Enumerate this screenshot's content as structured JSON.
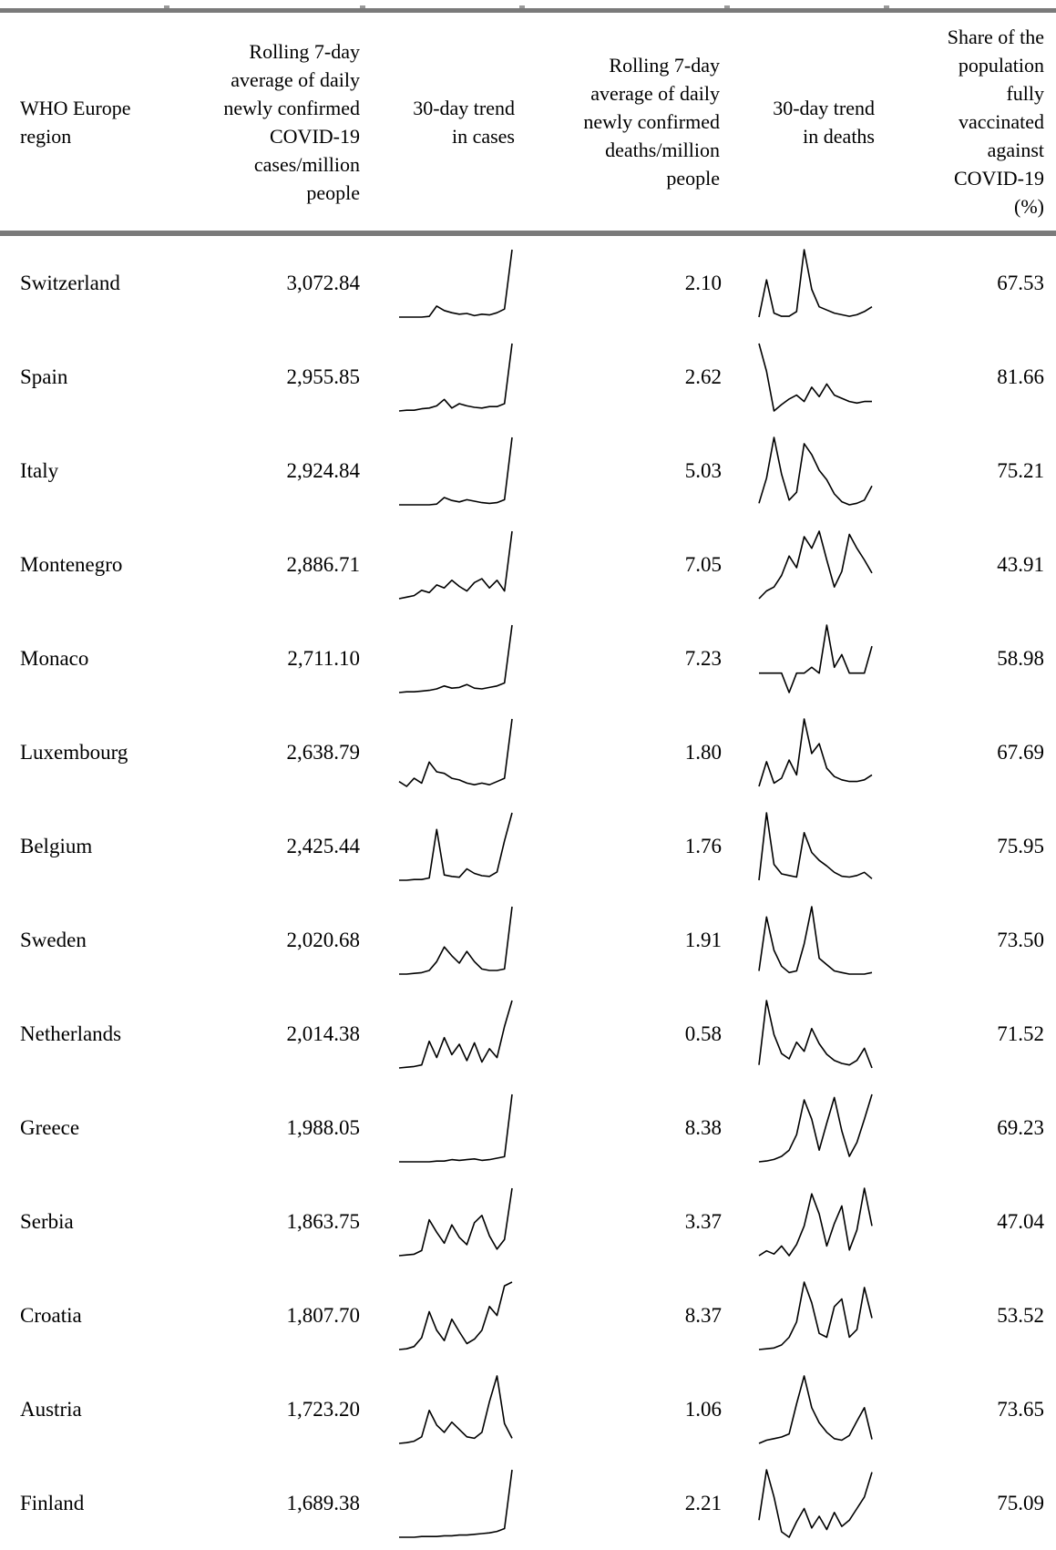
{
  "table": {
    "headers": {
      "region": "WHO Europe\nregion",
      "cases_avg": "Rolling 7-day\naverage of daily\nnewly confirmed\nCOVID-19\ncases/million\npeople",
      "cases_trend": "30-day trend\nin cases",
      "deaths_avg": "Rolling 7-day\naverage of daily\nnewly confirmed\ndeaths/million\npeople",
      "deaths_trend": "30-day trend\nin deaths",
      "vaccinated": "Share of the\npopulation\nfully\nvaccinated\nagainst\nCOVID-19\n(%)"
    },
    "rows": [
      {
        "region": "Switzerland",
        "cases": "3,072.84",
        "deaths": "2.10",
        "vaccinated": "67.53",
        "cases_trend": [
          3,
          3,
          3,
          3,
          4,
          18,
          12,
          9,
          7,
          8,
          5,
          7,
          6,
          9,
          14,
          95
        ],
        "deaths_trend": [
          5,
          52,
          10,
          6,
          6,
          12,
          90,
          40,
          18,
          14,
          10,
          8,
          6,
          8,
          12,
          18
        ]
      },
      {
        "region": "Spain",
        "cases": "2,955.85",
        "deaths": "2.62",
        "vaccinated": "81.66",
        "cases_trend": [
          4,
          5,
          5,
          7,
          8,
          11,
          20,
          8,
          14,
          11,
          9,
          8,
          10,
          10,
          14,
          97
        ],
        "deaths_trend": [
          95,
          60,
          10,
          18,
          25,
          30,
          22,
          40,
          28,
          44,
          30,
          26,
          22,
          20,
          22,
          22
        ]
      },
      {
        "region": "Italy",
        "cases": "2,924.84",
        "deaths": "5.03",
        "vaccinated": "75.21",
        "cases_trend": [
          3,
          3,
          3,
          3,
          3,
          4,
          13,
          9,
          7,
          10,
          8,
          6,
          5,
          6,
          10,
          95
        ],
        "deaths_trend": [
          8,
          40,
          92,
          45,
          12,
          22,
          84,
          70,
          50,
          38,
          20,
          10,
          6,
          8,
          12,
          30
        ]
      },
      {
        "region": "Montenegro",
        "cases": "2,886.71",
        "deaths": "7.05",
        "vaccinated": "43.91",
        "cases_trend": [
          4,
          6,
          8,
          15,
          12,
          22,
          18,
          28,
          20,
          14,
          25,
          30,
          18,
          28,
          14,
          92
        ],
        "deaths_trend": [
          5,
          15,
          20,
          35,
          60,
          45,
          85,
          70,
          92,
          55,
          20,
          40,
          88,
          70,
          55,
          38
        ]
      },
      {
        "region": "Monaco",
        "cases": "2,711.10",
        "deaths": "7.23",
        "vaccinated": "58.98",
        "cases_trend": [
          3,
          4,
          4,
          5,
          6,
          8,
          12,
          9,
          10,
          14,
          9,
          8,
          10,
          12,
          16,
          95
        ],
        "deaths_trend": [
          28,
          28,
          28,
          28,
          5,
          28,
          28,
          35,
          28,
          85,
          35,
          50,
          28,
          28,
          28,
          60
        ]
      },
      {
        "region": "Luxembourg",
        "cases": "2,638.79",
        "deaths": "1.80",
        "vaccinated": "67.69",
        "cases_trend": [
          18,
          12,
          22,
          16,
          42,
          30,
          28,
          22,
          20,
          16,
          14,
          16,
          14,
          18,
          22,
          95
        ],
        "deaths_trend": [
          8,
          38,
          12,
          18,
          40,
          22,
          90,
          48,
          60,
          30,
          20,
          16,
          14,
          14,
          16,
          22
        ]
      },
      {
        "region": "Belgium",
        "cases": "2,425.44",
        "deaths": "1.76",
        "vaccinated": "75.95",
        "cases_trend": [
          3,
          3,
          4,
          4,
          6,
          70,
          10,
          8,
          7,
          18,
          12,
          9,
          8,
          14,
          55,
          92
        ],
        "deaths_trend": [
          10,
          95,
          30,
          18,
          16,
          14,
          70,
          45,
          35,
          28,
          20,
          15,
          14,
          16,
          20,
          12
        ]
      },
      {
        "region": "Sweden",
        "cases": "2,020.68",
        "deaths": "1.91",
        "vaccinated": "73.50",
        "cases_trend": [
          3,
          3,
          4,
          5,
          8,
          20,
          40,
          28,
          18,
          34,
          20,
          10,
          8,
          8,
          10,
          95
        ],
        "deaths_trend": [
          14,
          82,
          40,
          20,
          12,
          14,
          48,
          95,
          30,
          22,
          14,
          12,
          10,
          10,
          10,
          12
        ]
      },
      {
        "region": "Netherlands",
        "cases": "2,014.38",
        "deaths": "0.58",
        "vaccinated": "71.52",
        "cases_trend": [
          4,
          5,
          6,
          8,
          40,
          18,
          45,
          22,
          36,
          14,
          38,
          12,
          30,
          18,
          60,
          95
        ],
        "deaths_trend": [
          10,
          95,
          50,
          25,
          18,
          40,
          28,
          58,
          38,
          24,
          16,
          12,
          10,
          16,
          32,
          6
        ]
      },
      {
        "region": "Greece",
        "cases": "1,988.05",
        "deaths": "8.38",
        "vaccinated": "69.23",
        "cases_trend": [
          3,
          3,
          3,
          3,
          3,
          4,
          4,
          6,
          5,
          6,
          7,
          5,
          6,
          8,
          10,
          95
        ],
        "deaths_trend": [
          5,
          6,
          8,
          12,
          20,
          40,
          85,
          60,
          20,
          55,
          88,
          45,
          12,
          30,
          60,
          92
        ]
      },
      {
        "region": "Serbia",
        "cases": "1,863.75",
        "deaths": "3.37",
        "vaccinated": "47.04",
        "cases_trend": [
          3,
          4,
          5,
          10,
          52,
          35,
          20,
          45,
          28,
          18,
          48,
          58,
          30,
          12,
          25,
          95
        ],
        "deaths_trend": [
          8,
          14,
          10,
          20,
          8,
          22,
          45,
          85,
          60,
          20,
          48,
          70,
          15,
          40,
          92,
          45
        ]
      },
      {
        "region": "Croatia",
        "cases": "1,807.70",
        "deaths": "8.37",
        "vaccinated": "53.52",
        "cases_trend": [
          4,
          5,
          8,
          20,
          55,
          30,
          16,
          45,
          28,
          12,
          18,
          30,
          62,
          50,
          90,
          95
        ],
        "deaths_trend": [
          4,
          5,
          6,
          10,
          20,
          40,
          92,
          65,
          25,
          20,
          60,
          70,
          20,
          30,
          85,
          45
        ]
      },
      {
        "region": "Austria",
        "cases": "1,723.20",
        "deaths": "1.06",
        "vaccinated": "73.65",
        "cases_trend": [
          3,
          4,
          6,
          12,
          48,
          28,
          18,
          32,
          22,
          12,
          10,
          18,
          60,
          95,
          30,
          10
        ],
        "deaths_trend": [
          10,
          14,
          16,
          18,
          22,
          60,
          95,
          55,
          36,
          24,
          16,
          14,
          20,
          38,
          55,
          15
        ]
      },
      {
        "region": "Finland",
        "cases": "1,689.38",
        "deaths": "2.21",
        "vaccinated": "75.09",
        "cases_trend": [
          2,
          2,
          2,
          3,
          3,
          3,
          4,
          4,
          5,
          5,
          6,
          7,
          8,
          10,
          14,
          95
        ],
        "deaths_trend": [
          30,
          95,
          60,
          15,
          8,
          28,
          45,
          20,
          35,
          18,
          40,
          22,
          30,
          45,
          60,
          92
        ]
      }
    ]
  }
}
